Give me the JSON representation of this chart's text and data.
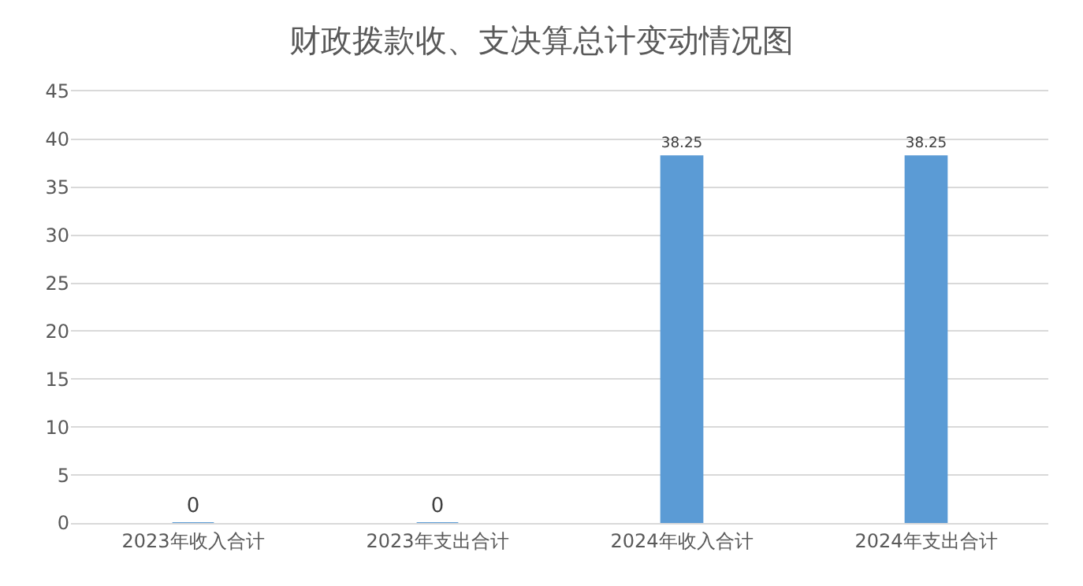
{
  "chart_data": {
    "type": "bar",
    "title": "财政拨款收、支决算总计变动情况图",
    "categories": [
      "2023年收入合计",
      "2023年支出合计",
      "2024年收入合计",
      "2024年支出合计"
    ],
    "values": [
      0,
      0,
      38.25,
      38.25
    ],
    "color": "#5b9bd5",
    "ylim": [
      0,
      45
    ],
    "yticks": [
      0,
      5,
      10,
      15,
      20,
      25,
      30,
      35,
      40,
      45
    ],
    "grid": "y",
    "data_labels": true
  }
}
